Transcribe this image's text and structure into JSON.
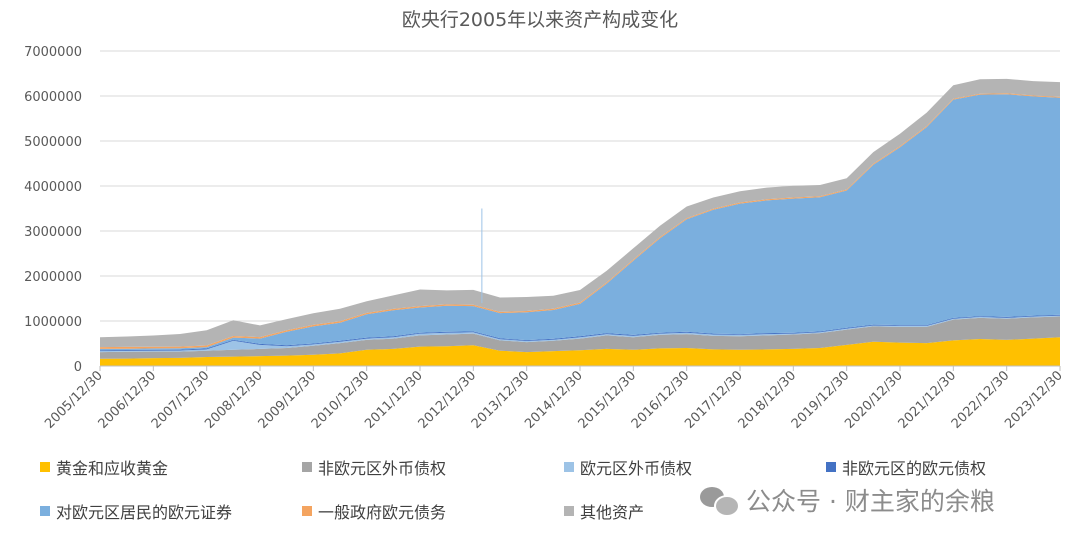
{
  "chart_data": {
    "type": "area",
    "title": "欧央行2005年以来资产构成变化",
    "ylim": [
      0,
      7000000
    ],
    "yticks": [
      "0",
      "1000000",
      "2000000",
      "3000000",
      "4000000",
      "5000000",
      "6000000",
      "7000000"
    ],
    "x_tick_labels": [
      "2005/12/30",
      "2006/12/30",
      "2007/12/30",
      "2008/12/30",
      "2009/12/30",
      "2010/12/30",
      "2011/12/30",
      "2012/12/30",
      "2013/12/30",
      "2014/12/30",
      "2015/12/30",
      "2016/12/30",
      "2017/12/30",
      "2018/12/30",
      "2019/12/30",
      "2020/12/30",
      "2021/12/30",
      "2022/12/30",
      "2023/12/30"
    ],
    "x": [
      2006.0,
      2006.5,
      2007.0,
      2007.5,
      2008.0,
      2008.5,
      2009.0,
      2009.5,
      2010.0,
      2010.5,
      2011.0,
      2011.5,
      2012.0,
      2012.5,
      2013.0,
      2013.5,
      2014.0,
      2014.5,
      2015.0,
      2015.5,
      2016.0,
      2016.5,
      2017.0,
      2017.5,
      2018.0,
      2018.5,
      2019.0,
      2019.5,
      2020.0,
      2020.5,
      2021.0,
      2021.5,
      2022.0,
      2022.5,
      2023.0,
      2023.5,
      2024.0
    ],
    "grid": true,
    "legend_position": "bottom",
    "series": [
      {
        "name": "黄金和应收黄金",
        "color": "#ffc000",
        "values": [
          160000,
          165000,
          175000,
          180000,
          200000,
          210000,
          220000,
          230000,
          250000,
          280000,
          360000,
          380000,
          430000,
          440000,
          460000,
          340000,
          310000,
          330000,
          350000,
          380000,
          360000,
          390000,
          400000,
          370000,
          360000,
          370000,
          380000,
          400000,
          470000,
          540000,
          520000,
          510000,
          570000,
          600000,
          580000,
          610000,
          640000
        ]
      },
      {
        "name": "非欧元区外币债权",
        "color": "#a5a5a5",
        "values": [
          150000,
          150000,
          145000,
          140000,
          140000,
          150000,
          160000,
          170000,
          200000,
          230000,
          220000,
          230000,
          250000,
          260000,
          260000,
          230000,
          220000,
          230000,
          260000,
          300000,
          280000,
          300000,
          310000,
          300000,
          300000,
          310000,
          320000,
          330000,
          340000,
          340000,
          350000,
          360000,
          460000,
          470000,
          470000,
          470000,
          460000
        ]
      },
      {
        "name": "欧元区外币债权",
        "color": "#9dc3e6",
        "values": [
          20000,
          20000,
          20000,
          25000,
          30000,
          200000,
          90000,
          40000,
          30000,
          30000,
          30000,
          30000,
          40000,
          40000,
          30000,
          25000,
          25000,
          25000,
          30000,
          30000,
          30000,
          30000,
          30000,
          30000,
          30000,
          30000,
          20000,
          20000,
          20000,
          20000,
          20000,
          20000,
          20000,
          20000,
          20000,
          20000,
          20000
        ]
      },
      {
        "name": "非欧元区的欧元债权",
        "color": "#4472c4",
        "values": [
          20000,
          20000,
          20000,
          20000,
          20000,
          20000,
          20000,
          20000,
          20000,
          20000,
          20000,
          20000,
          20000,
          20000,
          20000,
          20000,
          20000,
          20000,
          20000,
          20000,
          20000,
          20000,
          20000,
          20000,
          20000,
          20000,
          20000,
          20000,
          20000,
          20000,
          20000,
          20000,
          20000,
          20000,
          20000,
          20000,
          20000
        ]
      },
      {
        "name": "对欧元区居民的欧元证券",
        "color": "#7bafde",
        "values": [
          30000,
          30000,
          30000,
          30000,
          30000,
          50000,
          120000,
          300000,
          380000,
          400000,
          520000,
          580000,
          560000,
          580000,
          560000,
          560000,
          620000,
          640000,
          720000,
          1100000,
          1650000,
          2100000,
          2500000,
          2750000,
          2900000,
          2950000,
          2980000,
          2980000,
          3050000,
          3550000,
          3950000,
          4400000,
          4850000,
          4920000,
          4950000,
          4870000,
          4820000
        ]
      },
      {
        "name": "一般政府欧元债务",
        "color": "#f4a460",
        "values": [
          40000,
          40000,
          38000,
          36000,
          36000,
          36000,
          33000,
          33000,
          33000,
          33000,
          30000,
          30000,
          30000,
          30000,
          30000,
          28000,
          28000,
          28000,
          28000,
          25000,
          25000,
          25000,
          25000,
          25000,
          24000,
          24000,
          24000,
          23000,
          23000,
          23000,
          22000,
          22000,
          21000,
          21000,
          21000,
          21000,
          20000
        ]
      },
      {
        "name": "其他资产",
        "color": "#b4b4b4",
        "values": [
          220000,
          230000,
          250000,
          280000,
          340000,
          350000,
          260000,
          250000,
          260000,
          280000,
          260000,
          300000,
          370000,
          310000,
          330000,
          320000,
          310000,
          290000,
          280000,
          260000,
          250000,
          250000,
          260000,
          250000,
          250000,
          260000,
          260000,
          250000,
          250000,
          260000,
          280000,
          300000,
          300000,
          320000,
          320000,
          320000,
          330000
        ]
      }
    ],
    "spike": {
      "x": 2013.16,
      "value": 3500000
    }
  },
  "watermark": {
    "text": "公众号 · 财主家的余粮"
  }
}
